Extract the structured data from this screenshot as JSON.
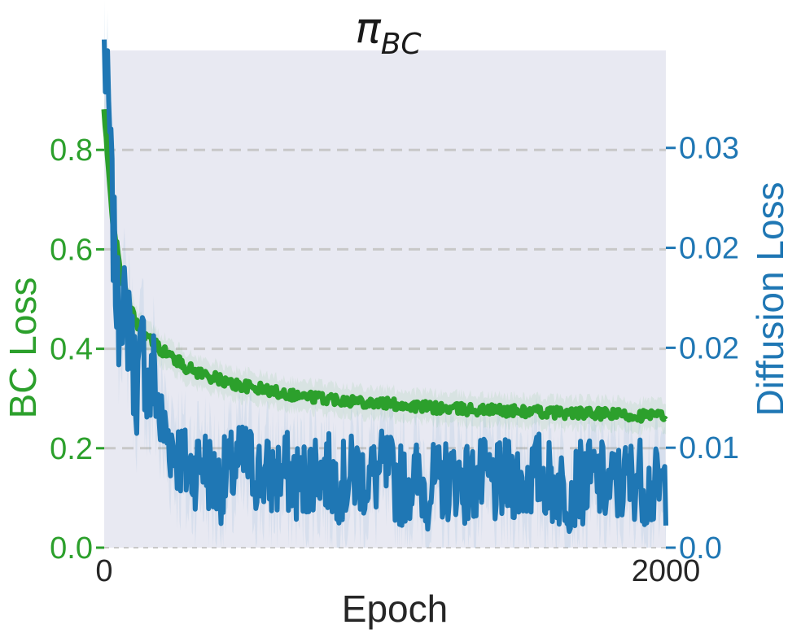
{
  "chart_data": {
    "type": "line",
    "title": "π",
    "title_subscript": "BC",
    "xlabel": "Epoch",
    "ylabel_left": "BC Loss",
    "ylabel_right": "Diffusion Loss",
    "xlim": [
      0,
      2000
    ],
    "ylim_left": [
      0,
      1.0
    ],
    "ylim_right": [
      0,
      0.0398
    ],
    "x_ticks": [
      {
        "value": 0,
        "label": "0"
      },
      {
        "value": 2000,
        "label": "2000"
      }
    ],
    "y_ticks_left": [
      {
        "value": 0.0,
        "label": "0.0"
      },
      {
        "value": 0.2,
        "label": "0.2"
      },
      {
        "value": 0.4,
        "label": "0.4"
      },
      {
        "value": 0.6,
        "label": "0.6"
      },
      {
        "value": 0.8,
        "label": "0.8"
      }
    ],
    "y_ticks_right": [
      {
        "value": 0.0,
        "label": "0.0"
      },
      {
        "value": 0.008,
        "label": "0.01"
      },
      {
        "value": 0.016,
        "label": "0.02"
      },
      {
        "value": 0.024,
        "label": "0.02"
      },
      {
        "value": 0.032,
        "label": "0.03"
      }
    ],
    "grid": "horizontal dashed",
    "background": "#e8e9f2",
    "series": [
      {
        "axis": "left",
        "color": "#2ca02c",
        "x": [
          0,
          10,
          20,
          30,
          40,
          50,
          60,
          80,
          100,
          130,
          160,
          200,
          250,
          300,
          350,
          400,
          450,
          500,
          550,
          600,
          700,
          800,
          900,
          1000,
          1100,
          1200,
          1300,
          1400,
          1500,
          1600,
          1700,
          1800,
          1900,
          2000
        ],
        "values": [
          0.88,
          0.8,
          0.73,
          0.67,
          0.62,
          0.58,
          0.55,
          0.5,
          0.47,
          0.44,
          0.42,
          0.4,
          0.38,
          0.36,
          0.35,
          0.34,
          0.33,
          0.325,
          0.32,
          0.315,
          0.305,
          0.3,
          0.295,
          0.29,
          0.285,
          0.28,
          0.278,
          0.276,
          0.274,
          0.272,
          0.27,
          0.268,
          0.266,
          0.265
        ]
      },
      {
        "axis": "right",
        "color": "#1f77b4",
        "x": [
          0,
          10,
          20,
          30,
          40,
          50,
          60,
          70,
          80,
          90,
          100,
          120,
          140,
          160,
          180,
          200,
          250,
          300,
          350,
          400,
          450,
          500,
          550,
          600,
          650,
          700,
          750,
          800,
          850,
          900,
          950,
          1000,
          1050,
          1100,
          1150,
          1200,
          1250,
          1300,
          1350,
          1400,
          1450,
          1500,
          1550,
          1600,
          1650,
          1700,
          1750,
          1800,
          1850,
          1900,
          1950,
          2000
        ],
        "values": [
          0.0398,
          0.036,
          0.033,
          0.026,
          0.022,
          0.018,
          0.021,
          0.019,
          0.017,
          0.02,
          0.015,
          0.013,
          0.016,
          0.012,
          0.014,
          0.01,
          0.008,
          0.006,
          0.007,
          0.005,
          0.006,
          0.007,
          0.006,
          0.0055,
          0.006,
          0.005,
          0.0065,
          0.0058,
          0.0052,
          0.006,
          0.0055,
          0.0062,
          0.005,
          0.0055,
          0.0048,
          0.0052,
          0.0058,
          0.005,
          0.0054,
          0.0049,
          0.0056,
          0.0052,
          0.006,
          0.005,
          0.0046,
          0.0052,
          0.0055,
          0.0048,
          0.0052,
          0.0058,
          0.0045,
          0.005
        ]
      }
    ]
  }
}
